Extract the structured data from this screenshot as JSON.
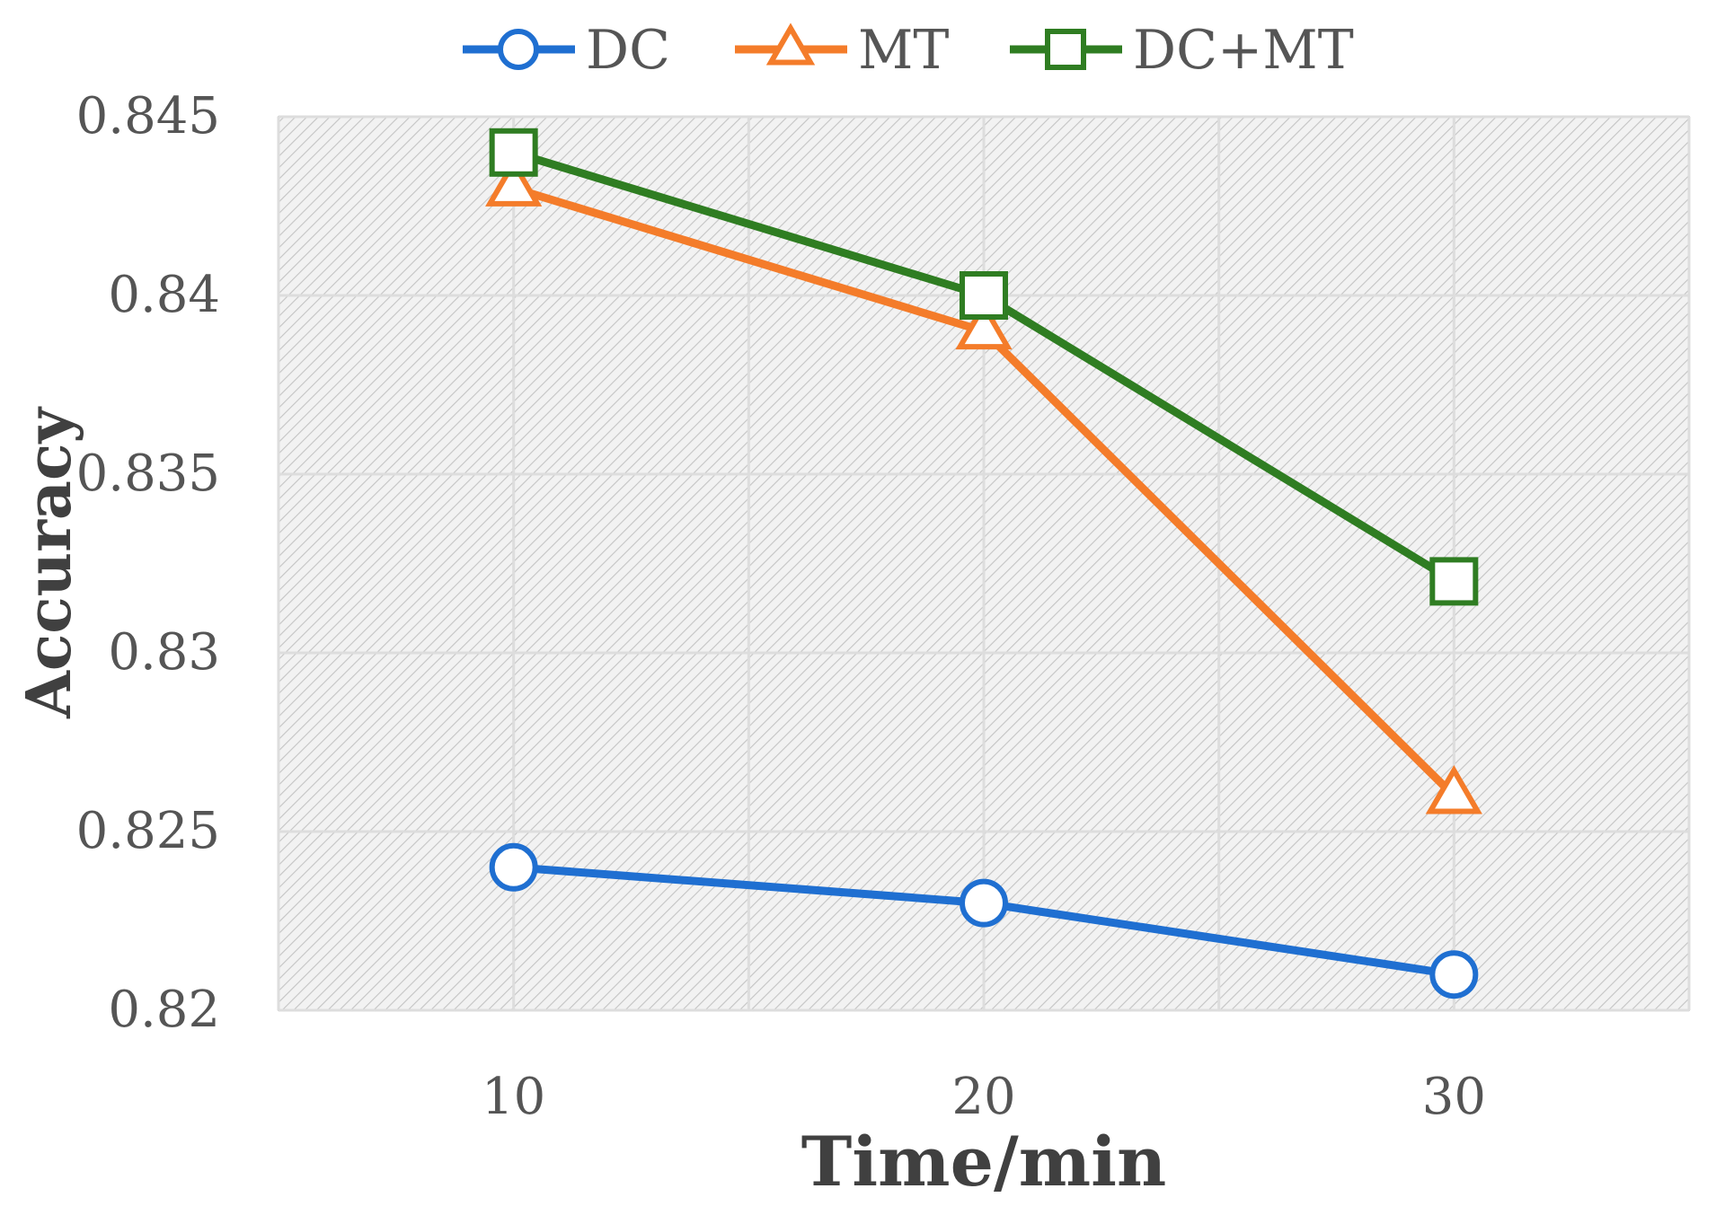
{
  "chart_data": {
    "type": "line",
    "title": "",
    "xlabel": "Time/min",
    "ylabel": "Accuracy",
    "categories": [
      "10",
      "20",
      "30"
    ],
    "x": [
      10,
      20,
      30
    ],
    "xlim": [
      5,
      35
    ],
    "ylim": [
      0.82,
      0.845
    ],
    "yticks": [
      0.82,
      0.825,
      0.83,
      0.835,
      0.84,
      0.845
    ],
    "ytick_labels": [
      "0.82",
      "0.825",
      "0.83",
      "0.835",
      "0.84",
      "0.845"
    ],
    "grid": true,
    "legend_position": "top",
    "series": [
      {
        "name": "DC",
        "marker": "circle",
        "color": "#1f6fd1",
        "values": [
          0.824,
          0.823,
          0.821
        ]
      },
      {
        "name": "MT",
        "marker": "triangle",
        "color": "#f47c2a",
        "values": [
          0.843,
          0.839,
          0.826
        ]
      },
      {
        "name": "DC+MT",
        "marker": "square",
        "color": "#2f7d22",
        "values": [
          0.844,
          0.84,
          0.832
        ]
      }
    ]
  }
}
